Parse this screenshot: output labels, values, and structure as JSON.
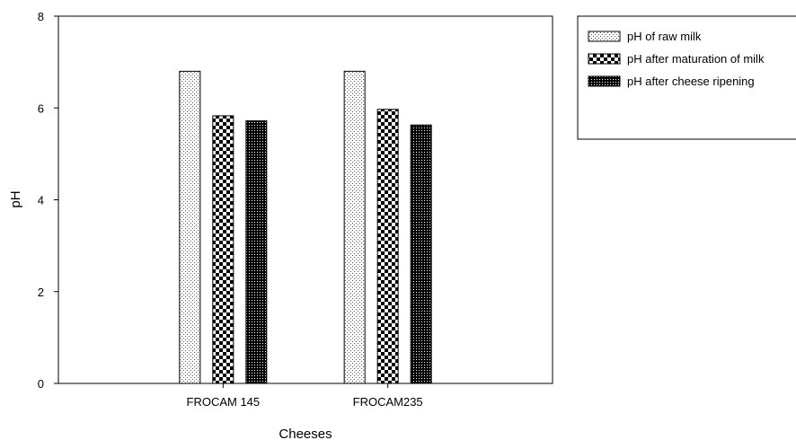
{
  "chart_data": {
    "type": "bar",
    "categories": [
      "FROCAM 145",
      "FROCAM235"
    ],
    "series": [
      {
        "name": "pH of raw milk",
        "values": [
          6.8,
          6.8
        ],
        "pattern": "dots"
      },
      {
        "name": "pH after maturation of milk",
        "values": [
          5.83,
          5.97
        ],
        "pattern": "checker"
      },
      {
        "name": "pH after cheese ripening",
        "values": [
          5.72,
          5.63
        ],
        "pattern": "dense"
      }
    ],
    "xlabel": "Cheeses",
    "ylabel": "pH",
    "ylim": [
      0,
      8
    ],
    "yticks": [
      0,
      2,
      4,
      6,
      8
    ],
    "grid": false,
    "legend_position": "top-right"
  }
}
